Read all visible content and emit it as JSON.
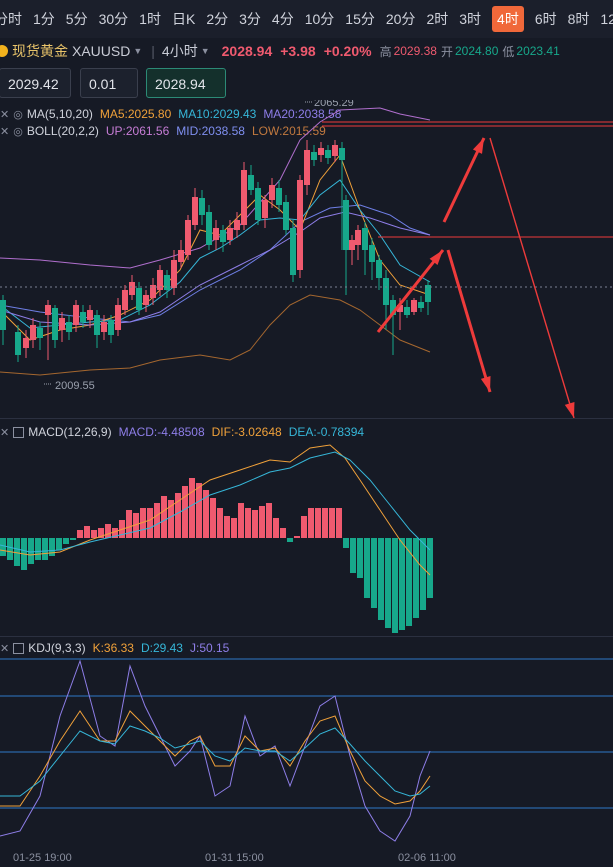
{
  "timeframes": [
    "分时",
    "1分",
    "5分",
    "30分",
    "1时",
    "日K",
    "2分",
    "3分",
    "4分",
    "10分",
    "15分",
    "20分",
    "2时",
    "3时",
    "4时",
    "6时",
    "8时",
    "12"
  ],
  "active_timeframe": "4时",
  "symbol": {
    "name": "现货黄金",
    "code": "XAUUSD",
    "period": "4小时",
    "price": "2028.94",
    "change": "+3.98",
    "change_pct": "+0.20%",
    "high_label": "高",
    "high": "2029.38",
    "open_label": "开",
    "open": "2024.80",
    "low_label": "低",
    "low": "2023.41"
  },
  "inputs": {
    "price_a": "2029.42",
    "step": "0.01",
    "price_b": "2028.94"
  },
  "ma": {
    "label": "MA(5,10,20)",
    "ma5": "MA5:2025.80",
    "ma10": "MA10:2029.43",
    "ma20": "MA20:2038.58"
  },
  "boll": {
    "label": "BOLL(20,2,2)",
    "up": "UP:2061.56",
    "mid": "MID:2038.58",
    "low": "LOW:2015.59"
  },
  "price_marks": {
    "high": "2065.29",
    "low": "2009.55"
  },
  "macd": {
    "label": "MACD(12,26,9)",
    "macd": "MACD:-4.48508",
    "dif": "DIF:-3.02648",
    "dea": "DEA:-0.78394"
  },
  "kdj": {
    "label": "KDJ(9,3,3)",
    "k": "K:36.33",
    "d": "D:29.43",
    "j": "J:50.15"
  },
  "dates": [
    "01-25 19:00",
    "01-31 15:00",
    "02-06 11:00"
  ],
  "colors": {
    "up": "#ef5a6f",
    "down": "#17a88b",
    "ma5": "#f0a13a",
    "ma10": "#36b6d8",
    "ma20": "#8e7ee8",
    "arrow": "#ee3b3b"
  }
}
